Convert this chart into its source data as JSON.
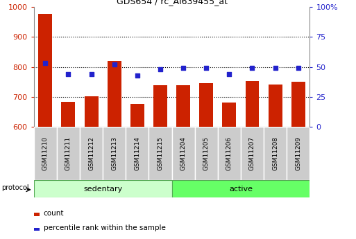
{
  "title": "GDS654 / rc_AI639455_at",
  "samples": [
    "GSM11210",
    "GSM11211",
    "GSM11212",
    "GSM11213",
    "GSM11214",
    "GSM11215",
    "GSM11204",
    "GSM11205",
    "GSM11206",
    "GSM11207",
    "GSM11208",
    "GSM11209"
  ],
  "counts": [
    978,
    683,
    702,
    821,
    676,
    738,
    738,
    746,
    681,
    752,
    740,
    750
  ],
  "percentile_ranks": [
    53,
    44,
    44,
    52,
    43,
    48,
    49,
    49,
    44,
    49,
    49,
    49
  ],
  "groups": [
    "sedentary",
    "sedentary",
    "sedentary",
    "sedentary",
    "sedentary",
    "sedentary",
    "active",
    "active",
    "active",
    "active",
    "active",
    "active"
  ],
  "ylim_left": [
    600,
    1000
  ],
  "ylim_right": [
    0,
    100
  ],
  "yticks_left": [
    600,
    700,
    800,
    900,
    1000
  ],
  "yticks_right": [
    0,
    25,
    50,
    75,
    100
  ],
  "ytick_labels_right": [
    "0",
    "25",
    "50",
    "75",
    "100%"
  ],
  "bar_color": "#CC2200",
  "dot_color": "#2222CC",
  "sedentary_color": "#CCFFCC",
  "active_color": "#66FF66",
  "sample_box_color": "#CCCCCC",
  "grid_color": "#000000",
  "tick_label_color_left": "#CC2200",
  "tick_label_color_right": "#2222CC",
  "group_label_sedentary": "sedentary",
  "group_label_active": "active",
  "legend_count": "count",
  "legend_percentile": "percentile rank within the sample",
  "protocol_label": "protocol"
}
